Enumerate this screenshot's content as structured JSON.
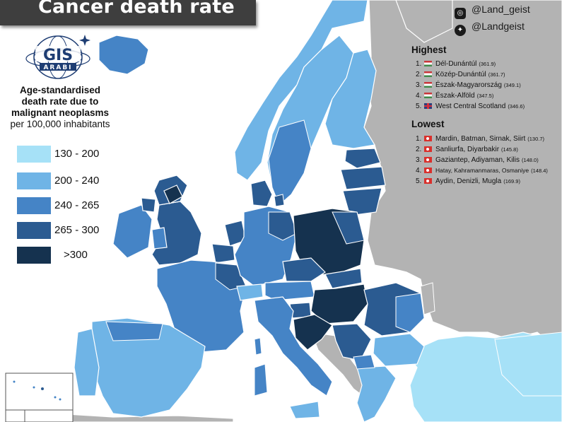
{
  "title": "Cancer death rate",
  "social": {
    "instagram": "@Land_geist",
    "twitter": "@Landgeist",
    "instagram_icon": "instagram-icon",
    "twitter_icon": "twitter-icon"
  },
  "logo": {
    "text": "GIS ARABI"
  },
  "legend": {
    "title_lines": [
      "Age-standardised",
      "death rate due to",
      "malignant neoplasms"
    ],
    "subtitle": "per 100,000 inhabitants",
    "items": [
      {
        "label": "130 - 200",
        "color": "#a6e1f7"
      },
      {
        "label": "200 - 240",
        "color": "#6fb4e6"
      },
      {
        "label": "240 - 265",
        "color": "#4584c6"
      },
      {
        "label": "265 - 300",
        "color": "#2b5b91"
      },
      {
        "label": ">300",
        "color": "#15324f"
      }
    ]
  },
  "highest": {
    "heading": "Highest",
    "items": [
      {
        "rank": "1.",
        "flag": "hungary",
        "name": "Dél-Dunántúl",
        "value": "(361.9)"
      },
      {
        "rank": "2.",
        "flag": "hungary",
        "name": "Közép-Dunántúl",
        "value": "(361.7)"
      },
      {
        "rank": "3.",
        "flag": "hungary",
        "name": "Észak-Magyarország",
        "value": "(349.1)"
      },
      {
        "rank": "4.",
        "flag": "hungary",
        "name": "Észak-Alföld",
        "value": "(347.5)"
      },
      {
        "rank": "5.",
        "flag": "uk",
        "name": "West Central Scotland",
        "value": "(346.6)"
      }
    ]
  },
  "lowest": {
    "heading": "Lowest",
    "items": [
      {
        "rank": "1.",
        "flag": "turkey",
        "name": "Mardin, Batman, Sirnak, Siirt",
        "value": "(130.7)"
      },
      {
        "rank": "2.",
        "flag": "turkey",
        "name": "Sanliurfa, Diyarbakir",
        "value": "(145.8)"
      },
      {
        "rank": "3.",
        "flag": "turkey",
        "name": "Gaziantep, Adiyaman, Kilis",
        "value": "(148.0)"
      },
      {
        "rank": "4.",
        "flag": "turkey",
        "name": "Hatay, Kahramanmaras, Osmaniye",
        "value": "(148.4)"
      },
      {
        "rank": "5.",
        "flag": "turkey",
        "name": "Aydin, Denizli, Mugla",
        "value": "(169.9)"
      }
    ]
  },
  "colors": {
    "no_data": "#b3b3b3",
    "border": "#ffffff",
    "background": "#ffffff"
  }
}
